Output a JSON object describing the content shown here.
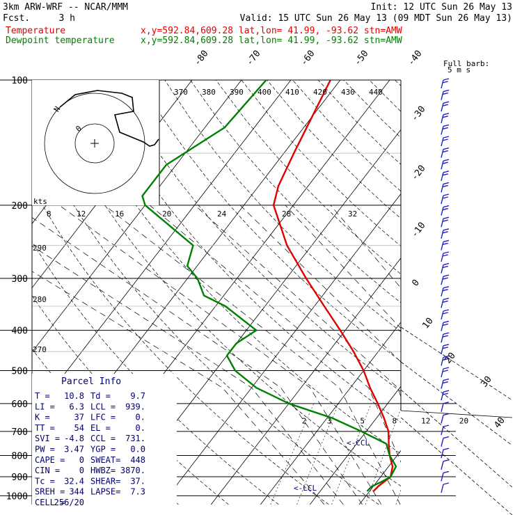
{
  "header": {
    "model": "3km ARW-WRF -- NCAR/MMM",
    "fcst_label": "Fcst.",
    "fcst_value": "3 h",
    "init": "Init: 12 UTC Sun 26 May 13",
    "valid": "Valid: 15 UTC Sun 26 May 13 (09 MDT Sun 26 May 13)",
    "temp_line_name": "Temperature",
    "dew_line_name": "Dewpoint temperature",
    "location": "x,y=592.84,609.28   lat,lon= 41.99, -93.62  stn=AMW"
  },
  "colors": {
    "temperature": "#e00000",
    "dewpoint": "#008000",
    "wind_barb": "#2020c0",
    "parcel_text": "#000070",
    "grid": "#000000"
  },
  "chart_data": {
    "type": "line",
    "subtype": "skew-T log-P sounding",
    "pressure_levels": [
      "100",
      "200",
      "300",
      "400",
      "500",
      "600",
      "700",
      "800",
      "900",
      "1000"
    ],
    "isotherm_labels": [
      "-80",
      "-70",
      "-60",
      "-50",
      "-40",
      "-30",
      "-20",
      "-10",
      "0",
      "10",
      "20",
      "30",
      "40"
    ],
    "mixing_ratio_labels": [
      "2",
      "3",
      "5",
      "8",
      "12",
      "20"
    ],
    "theta_e_upper_labels": [
      "370",
      "380",
      "390",
      "400",
      "410",
      "420",
      "430",
      "440"
    ],
    "theta_e_mid_labels": [
      "8",
      "12",
      "16",
      "20",
      "24",
      "28",
      "32"
    ],
    "theta_left_labels": [
      "290",
      "280",
      "270"
    ],
    "series": [
      {
        "name": "Temperature",
        "p": [
          100,
          150,
          180,
          200,
          250,
          300,
          350,
          400,
          450,
          500,
          550,
          600,
          650,
          700,
          750,
          800,
          850,
          900,
          925,
          950,
          975
        ],
        "t": [
          -62,
          -58,
          -56,
          -54,
          -45,
          -36,
          -28,
          -21,
          -15,
          -10,
          -6,
          -2,
          1.5,
          4.5,
          6.5,
          8.5,
          10.8,
          12,
          11.5,
          11,
          10.8
        ]
      },
      {
        "name": "Dewpoint temperature",
        "p": [
          100,
          130,
          160,
          190,
          200,
          250,
          280,
          300,
          330,
          350,
          400,
          430,
          460,
          500,
          550,
          600,
          650,
          700,
          750,
          800,
          850,
          900,
          925,
          950,
          975
        ],
        "t": [
          -75,
          -76,
          -82,
          -82,
          -80,
          -64,
          -62,
          -58,
          -54,
          -48,
          -38,
          -40,
          -40,
          -36,
          -29,
          -20,
          -9,
          -1,
          6,
          8.5,
          11.5,
          12,
          11,
          9.7,
          9.5
        ]
      }
    ],
    "wind_barbs": {
      "label": "Full barb:",
      "label2": "5 m s",
      "count": 36
    },
    "hodograph": {
      "labels": [
        "kts",
        "N",
        "0"
      ]
    },
    "annotations": {
      "ccl": "<-CCL",
      "lcl": "<-LCL"
    },
    "title": "",
    "xlabel": "",
    "ylabel": ""
  },
  "parcel_info": {
    "title": "Parcel Info",
    "rows": [
      [
        "T  =",
        "10.8",
        "Td =",
        "9.7"
      ],
      [
        "LI =",
        "6.3",
        "LCL =",
        "939."
      ],
      [
        "K  =",
        "37",
        "LFC =",
        "0."
      ],
      [
        "TT =",
        "54",
        "EL =",
        "0."
      ],
      [
        "SVI =",
        "-4.8",
        "CCL =",
        "731."
      ],
      [
        "PW =",
        "3.47",
        "YGP =",
        "0.0"
      ],
      [
        "CAPE =",
        "0",
        "SWEAT=",
        "448"
      ],
      [
        "CIN =",
        "0",
        "HWBZ=",
        "3870."
      ],
      [
        "Tc =",
        "32.4",
        "SHEAR=",
        "37."
      ],
      [
        "SREH =",
        "344",
        "LAPSE=",
        "7.3"
      ],
      [
        "CELL =",
        "256/20",
        "",
        ""
      ]
    ]
  }
}
